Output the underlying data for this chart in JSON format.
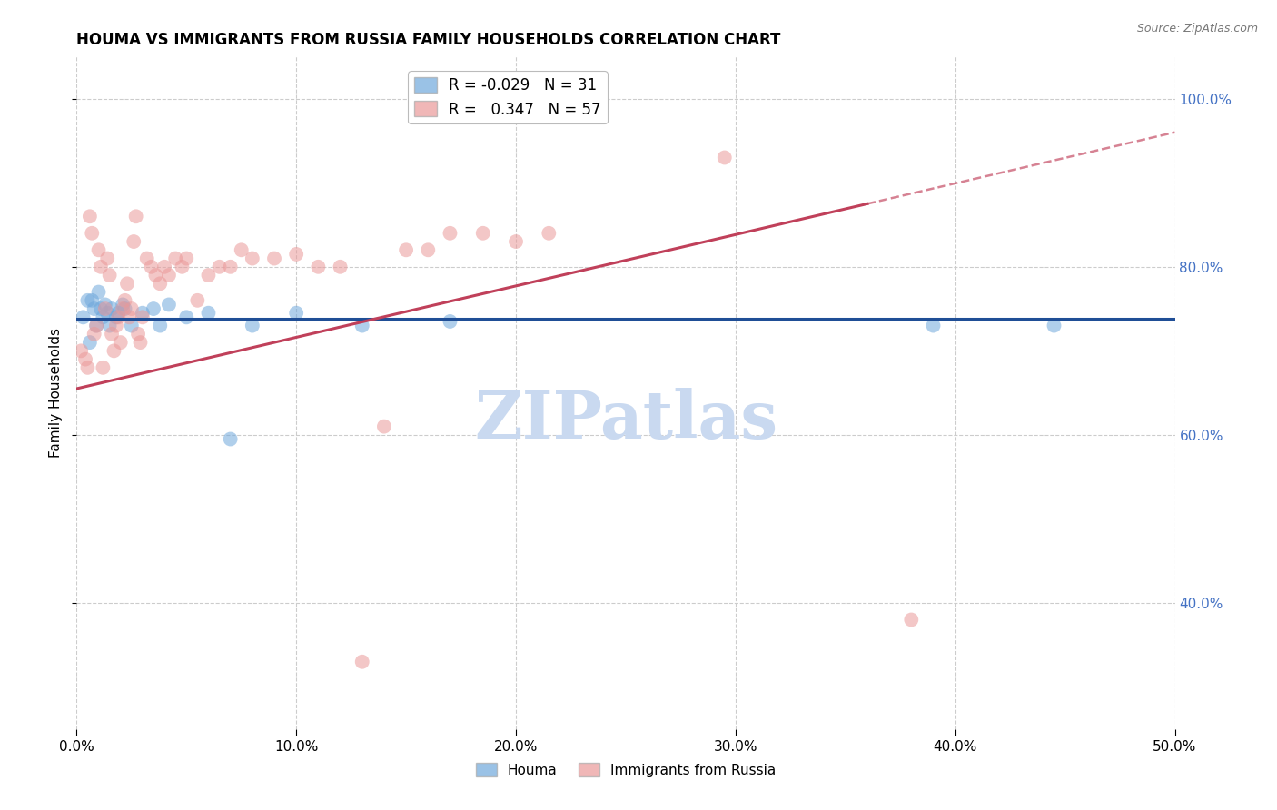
{
  "title": "HOUMA VS IMMIGRANTS FROM RUSSIA FAMILY HOUSEHOLDS CORRELATION CHART",
  "source": "Source: ZipAtlas.com",
  "ylabel": "Family Households",
  "xlim": [
    0.0,
    0.5
  ],
  "ylim": [
    0.25,
    1.05
  ],
  "xticks": [
    0.0,
    0.1,
    0.2,
    0.3,
    0.4,
    0.5
  ],
  "xtick_labels": [
    "0.0%",
    "10.0%",
    "20.0%",
    "30.0%",
    "40.0%",
    "50.0%"
  ],
  "yticks": [
    0.4,
    0.6,
    0.8,
    1.0
  ],
  "right_ytick_labels": [
    "40.0%",
    "60.0%",
    "80.0%",
    "100.0%"
  ],
  "background_color": "#ffffff",
  "grid_color": "#cccccc",
  "houma_color": "#6fa8dc",
  "russia_color": "#ea9999",
  "line_blue": "#1f4e96",
  "line_pink": "#c0405a",
  "right_axis_color": "#4472c4",
  "title_fontsize": 12,
  "label_fontsize": 11,
  "tick_fontsize": 11,
  "watermark_text": "ZIPatlas",
  "watermark_color": "#c9d9f0",
  "watermark_fontsize": 52,
  "houma_x": [
    0.003,
    0.005,
    0.006,
    0.007,
    0.008,
    0.009,
    0.01,
    0.011,
    0.012,
    0.013,
    0.014,
    0.015,
    0.016,
    0.018,
    0.019,
    0.021,
    0.022,
    0.025,
    0.03,
    0.035,
    0.038,
    0.042,
    0.05,
    0.06,
    0.07,
    0.08,
    0.1,
    0.13,
    0.17,
    0.39,
    0.445
  ],
  "houma_y": [
    0.74,
    0.76,
    0.71,
    0.76,
    0.75,
    0.73,
    0.77,
    0.75,
    0.74,
    0.755,
    0.745,
    0.73,
    0.75,
    0.74,
    0.745,
    0.755,
    0.75,
    0.73,
    0.745,
    0.75,
    0.73,
    0.755,
    0.74,
    0.745,
    0.595,
    0.73,
    0.745,
    0.73,
    0.735,
    0.73,
    0.73
  ],
  "russia_x": [
    0.002,
    0.004,
    0.005,
    0.006,
    0.007,
    0.008,
    0.009,
    0.01,
    0.011,
    0.012,
    0.013,
    0.014,
    0.015,
    0.016,
    0.017,
    0.018,
    0.019,
    0.02,
    0.021,
    0.022,
    0.023,
    0.024,
    0.025,
    0.026,
    0.027,
    0.028,
    0.029,
    0.03,
    0.032,
    0.034,
    0.036,
    0.038,
    0.04,
    0.042,
    0.045,
    0.048,
    0.05,
    0.055,
    0.06,
    0.065,
    0.07,
    0.075,
    0.08,
    0.09,
    0.1,
    0.11,
    0.12,
    0.13,
    0.14,
    0.15,
    0.16,
    0.17,
    0.185,
    0.2,
    0.215,
    0.295,
    0.38
  ],
  "russia_y": [
    0.7,
    0.69,
    0.68,
    0.86,
    0.84,
    0.72,
    0.73,
    0.82,
    0.8,
    0.68,
    0.75,
    0.81,
    0.79,
    0.72,
    0.7,
    0.73,
    0.74,
    0.71,
    0.75,
    0.76,
    0.78,
    0.74,
    0.75,
    0.83,
    0.86,
    0.72,
    0.71,
    0.74,
    0.81,
    0.8,
    0.79,
    0.78,
    0.8,
    0.79,
    0.81,
    0.8,
    0.81,
    0.76,
    0.79,
    0.8,
    0.8,
    0.82,
    0.81,
    0.81,
    0.815,
    0.8,
    0.8,
    0.33,
    0.61,
    0.82,
    0.82,
    0.84,
    0.84,
    0.83,
    0.84,
    0.93,
    0.38
  ],
  "houma_line_y": 0.738,
  "russia_line_x0": 0.0,
  "russia_line_y0": 0.655,
  "russia_line_x1": 0.36,
  "russia_line_y1": 0.875,
  "russia_line_x2": 0.5,
  "russia_line_y2": 0.96
}
